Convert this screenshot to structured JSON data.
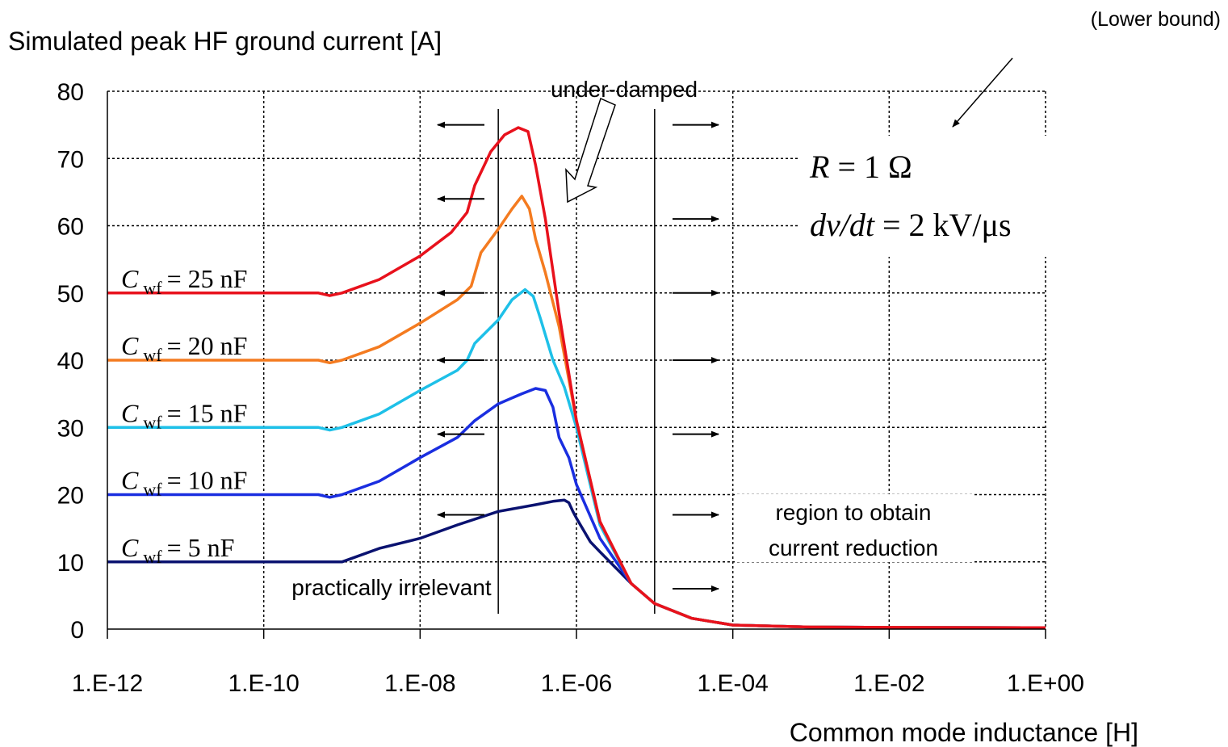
{
  "chart_data": {
    "type": "line",
    "ylabel": "Simulated peak HF ground current [A]",
    "xlabel": "Common mode inductance [H]",
    "xscale": "log",
    "xlim": [
      1e-12,
      1
    ],
    "ylim": [
      0,
      80
    ],
    "grid": true,
    "x_tick_values": [
      1e-12,
      1e-10,
      1e-08,
      1e-06,
      0.0001,
      0.01,
      1
    ],
    "x_tick_labels": [
      "1.E-12",
      "1.E-10",
      "1.E-08",
      "1.E-06",
      "1.E-04",
      "1.E-02",
      "1.E+00"
    ],
    "y_ticks": [
      0,
      10,
      20,
      30,
      40,
      50,
      60,
      70,
      80
    ],
    "series": [
      {
        "name": "C wf = 25 nF",
        "color": "#e8111c",
        "x": [
          1e-12,
          5e-10,
          7e-10,
          1e-09,
          3e-09,
          1e-08,
          2.5e-08,
          4e-08,
          5e-08,
          8e-08,
          1.2e-07,
          1.8e-07,
          2.4e-07,
          3e-07,
          4e-07,
          6e-07,
          1e-06,
          2e-06,
          5e-06,
          1e-05,
          3e-05,
          0.0001,
          0.001,
          0.01,
          1
        ],
        "y": [
          50,
          50,
          49.6,
          50,
          52,
          55.5,
          59,
          62,
          66,
          71,
          73.5,
          74.6,
          74,
          69,
          61,
          47,
          31,
          16,
          6.8,
          3.8,
          1.6,
          0.6,
          0.3,
          0.25,
          0.2
        ]
      },
      {
        "name": "C wf = 20 nF",
        "color": "#f47b20",
        "x": [
          1e-12,
          5e-10,
          7e-10,
          1e-09,
          3e-09,
          1e-08,
          3e-08,
          4.5e-08,
          6e-08,
          1e-07,
          1.5e-07,
          2e-07,
          2.5e-07,
          3e-07,
          4e-07,
          6e-07,
          1e-06,
          2e-06,
          5e-06,
          1e-05,
          3e-05,
          0.0001,
          0.001,
          0.01,
          1
        ],
        "y": [
          40,
          40,
          39.6,
          40,
          42,
          45.5,
          49,
          51,
          56,
          59.5,
          62.5,
          64.4,
          62.5,
          58,
          53,
          45,
          31,
          16,
          6.8,
          3.8,
          1.6,
          0.6,
          0.3,
          0.25,
          0.2
        ]
      },
      {
        "name": "C wf = 15 nF",
        "color": "#1ec0e8",
        "x": [
          1e-12,
          5e-10,
          7e-10,
          1e-09,
          3e-09,
          1e-08,
          3e-08,
          4e-08,
          5e-08,
          1e-07,
          1.5e-07,
          2.2e-07,
          2.8e-07,
          3.5e-07,
          5e-07,
          7e-07,
          1e-06,
          2e-06,
          5e-06,
          1e-05,
          3e-05,
          0.0001,
          0.001,
          0.01,
          1
        ],
        "y": [
          30,
          30,
          29.6,
          30,
          32,
          35.5,
          38.5,
          40,
          42.5,
          46,
          49,
          50.5,
          49.5,
          46,
          40,
          36,
          30,
          15.5,
          6.8,
          3.8,
          1.6,
          0.6,
          0.3,
          0.25,
          0.2
        ]
      },
      {
        "name": "C wf = 10 nF",
        "color": "#1a2ee0",
        "x": [
          1e-12,
          5e-10,
          7e-10,
          1e-09,
          3e-09,
          1e-08,
          3e-08,
          5e-08,
          1e-07,
          2e-07,
          3e-07,
          4e-07,
          5e-07,
          6e-07,
          8e-07,
          1e-06,
          2e-06,
          5e-06,
          1e-05,
          3e-05,
          0.0001,
          0.001,
          0.01,
          1
        ],
        "y": [
          20,
          20,
          19.6,
          20,
          22,
          25.5,
          28.5,
          31,
          33.5,
          35,
          35.8,
          35.5,
          33,
          28.5,
          25.5,
          21.5,
          13.5,
          6.8,
          3.8,
          1.6,
          0.6,
          0.3,
          0.25,
          0.2
        ]
      },
      {
        "name": "C wf = 5 nF",
        "color": "#0a1270",
        "x": [
          1e-12,
          5e-10,
          1e-09,
          3e-09,
          1e-08,
          3e-08,
          1e-07,
          3e-07,
          5e-07,
          7e-07,
          8e-07,
          9e-07,
          1e-06,
          1.5e-06,
          2e-06,
          5e-06,
          1e-05,
          3e-05,
          0.0001,
          0.001,
          0.01,
          1
        ],
        "y": [
          10,
          10,
          10,
          12,
          13.5,
          15.5,
          17.5,
          18.5,
          19,
          19.2,
          18.8,
          17.5,
          16.5,
          13,
          11.5,
          6.8,
          3.8,
          1.6,
          0.6,
          0.3,
          0.25,
          0.2
        ]
      }
    ],
    "series_labels": [
      {
        "symbol": "C",
        "subscript": "wf",
        "rest": "= 25 nF",
        "y": 52.5
      },
      {
        "symbol": "C",
        "subscript": "wf",
        "rest": "= 20 nF",
        "y": 42.5
      },
      {
        "symbol": "C",
        "subscript": "wf",
        "rest": "= 15 nF",
        "y": 32.5
      },
      {
        "symbol": "C",
        "subscript": "wf",
        "rest": "= 10 nF",
        "y": 22.5
      },
      {
        "symbol": "C",
        "subscript": "wf",
        "rest": "= 5 nF",
        "y": 12.5
      }
    ],
    "boundary_lines_x": [
      1e-07,
      1e-05
    ],
    "annotations": {
      "underdamped": "under-damped",
      "irrelevant": "practically irrelevant",
      "region_line1": "region to obtain",
      "region_line2": "current reduction",
      "lower_bound": "(Lower bound)",
      "r_var": "R",
      "r_value": "= 1 Ω",
      "dvdt_var": "dv/dt",
      "dvdt_value": "= 2 kV/μs"
    }
  }
}
